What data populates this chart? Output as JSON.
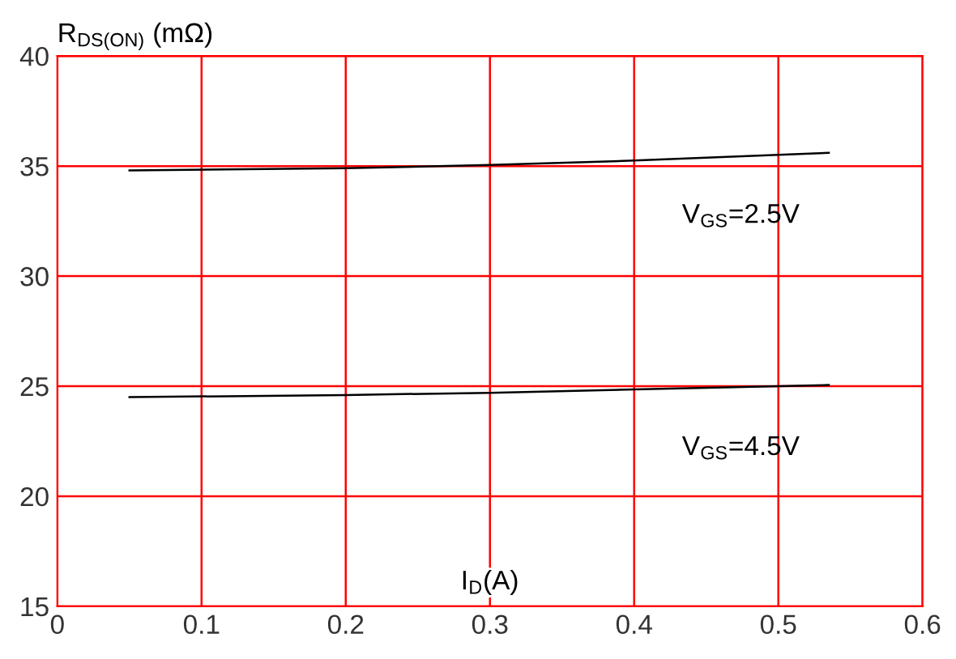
{
  "chart_data": {
    "type": "line",
    "ylabel": "R$_{DS(ON)}$ (mΩ)",
    "xlabel": "I$_{D}$(A)",
    "xlim": [
      0,
      0.6
    ],
    "xticks": [
      0,
      0.1,
      0.2,
      0.3,
      0.4,
      0.5,
      0.6
    ],
    "ylim": [
      15,
      40
    ],
    "yticks": [
      15,
      20,
      25,
      30,
      35,
      40
    ],
    "grid": true,
    "legend": false,
    "marker": "none",
    "line_style": "solid",
    "series": [
      {
        "color": "#000000",
        "x": [
          0.05,
          0.2,
          0.3,
          0.4,
          0.535
        ],
        "values": [
          34.8,
          34.9,
          35.05,
          35.25,
          35.6
        ]
      },
      {
        "color": "#000000",
        "x": [
          0.05,
          0.2,
          0.3,
          0.4,
          0.535
        ],
        "values": [
          24.5,
          24.6,
          24.7,
          24.85,
          25.05
        ]
      }
    ],
    "annotations": [
      "V$_{GS}$=2.5V",
      "V$_{GS}$=4.5V"
    ]
  }
}
